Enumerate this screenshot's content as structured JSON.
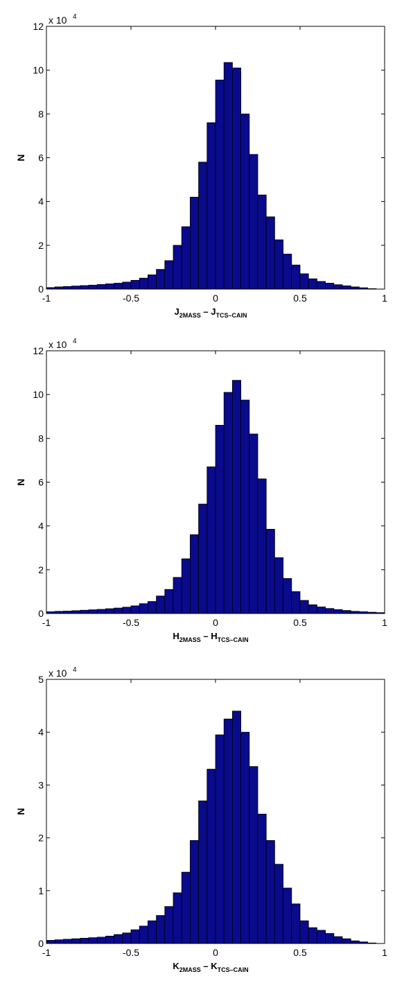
{
  "chart_data": [
    {
      "type": "bar",
      "xlabel": {
        "main1": "J",
        "sub1": "2MASS",
        "sep": " – ",
        "main2": "J",
        "sub2": "TCS–CAIN"
      },
      "ylabel": "N",
      "multiplier": {
        "base": "x 10",
        "exponent": "4"
      },
      "xlim": [
        -1,
        1
      ],
      "ylim": [
        0,
        120000
      ],
      "xticks": [
        "-1",
        "-0.5",
        "0",
        "0.5",
        "1"
      ],
      "yticks": [
        "0",
        "2",
        "4",
        "6",
        "8",
        "10",
        "12"
      ],
      "bin_width": 0.05,
      "bin_starts": [
        -1.0,
        -0.95,
        -0.9,
        -0.85,
        -0.8,
        -0.75,
        -0.7,
        -0.65,
        -0.6,
        -0.55,
        -0.5,
        -0.45,
        -0.4,
        -0.35,
        -0.3,
        -0.25,
        -0.2,
        -0.15,
        -0.1,
        -0.05,
        0.0,
        0.05,
        0.1,
        0.15,
        0.2,
        0.25,
        0.3,
        0.35,
        0.4,
        0.45,
        0.5,
        0.55,
        0.6,
        0.65,
        0.7,
        0.75,
        0.8,
        0.85,
        0.9,
        0.95
      ],
      "values": [
        700,
        1000,
        1200,
        1400,
        1600,
        1800,
        2100,
        2400,
        2700,
        3200,
        4000,
        5000,
        6500,
        9000,
        13000,
        20000,
        28500,
        42000,
        58000,
        76000,
        95500,
        103500,
        101000,
        80000,
        61500,
        43000,
        33000,
        22500,
        16000,
        11000,
        7000,
        4700,
        3500,
        2700,
        2000,
        1500,
        1000,
        600,
        200,
        0
      ],
      "bar_color": "#0A0A8C"
    },
    {
      "type": "bar",
      "xlabel": {
        "main1": "H",
        "sub1": "2MASS",
        "sep": " – ",
        "main2": "H",
        "sub2": "TCS–CAIN"
      },
      "ylabel": "N",
      "multiplier": {
        "base": "x 10",
        "exponent": "4"
      },
      "xlim": [
        -1,
        1
      ],
      "ylim": [
        0,
        120000
      ],
      "xticks": [
        "-1",
        "-0.5",
        "0",
        "0.5",
        "1"
      ],
      "yticks": [
        "0",
        "2",
        "4",
        "6",
        "8",
        "10",
        "12"
      ],
      "bin_width": 0.05,
      "bin_starts": [
        -1.0,
        -0.95,
        -0.9,
        -0.85,
        -0.8,
        -0.75,
        -0.7,
        -0.65,
        -0.6,
        -0.55,
        -0.5,
        -0.45,
        -0.4,
        -0.35,
        -0.3,
        -0.25,
        -0.2,
        -0.15,
        -0.1,
        -0.05,
        0.0,
        0.05,
        0.1,
        0.15,
        0.2,
        0.25,
        0.3,
        0.35,
        0.4,
        0.45,
        0.5,
        0.55,
        0.6,
        0.65,
        0.7,
        0.75,
        0.8,
        0.85,
        0.9,
        0.95
      ],
      "values": [
        800,
        1000,
        1100,
        1300,
        1500,
        1700,
        1900,
        2200,
        2500,
        2900,
        3500,
        4500,
        5500,
        8000,
        11000,
        16500,
        25000,
        36000,
        50000,
        67000,
        86000,
        101000,
        106500,
        97500,
        82000,
        61500,
        38500,
        25500,
        16000,
        10000,
        6000,
        4000,
        3000,
        2300,
        1800,
        1400,
        1000,
        800,
        600,
        400
      ],
      "bar_color": "#0A0A8C"
    },
    {
      "type": "bar",
      "xlabel": {
        "main1": "K",
        "sub1": "2MASS",
        "sep": " – ",
        "main2": "K",
        "sub2": "TCS–CAIN"
      },
      "ylabel": "N",
      "multiplier": {
        "base": "x 10",
        "exponent": "4"
      },
      "xlim": [
        -1,
        1
      ],
      "ylim": [
        0,
        50000
      ],
      "xticks": [
        "-1",
        "-0.5",
        "0",
        "0.5",
        "1"
      ],
      "yticks": [
        "0",
        "1",
        "2",
        "3",
        "4",
        "5"
      ],
      "bin_width": 0.05,
      "bin_starts": [
        -1.0,
        -0.95,
        -0.9,
        -0.85,
        -0.8,
        -0.75,
        -0.7,
        -0.65,
        -0.6,
        -0.55,
        -0.5,
        -0.45,
        -0.4,
        -0.35,
        -0.3,
        -0.25,
        -0.2,
        -0.15,
        -0.1,
        -0.05,
        0.0,
        0.05,
        0.1,
        0.15,
        0.2,
        0.25,
        0.3,
        0.35,
        0.4,
        0.45,
        0.5,
        0.55,
        0.6,
        0.65,
        0.7,
        0.75,
        0.8,
        0.85,
        0.9,
        0.95
      ],
      "values": [
        600,
        700,
        800,
        900,
        1000,
        1100,
        1200,
        1400,
        1700,
        2000,
        2600,
        3300,
        4300,
        5300,
        7000,
        9600,
        13500,
        19500,
        27000,
        33000,
        39500,
        42500,
        44000,
        40000,
        33500,
        24500,
        19500,
        15000,
        10500,
        7500,
        4300,
        3000,
        2500,
        1900,
        1300,
        900,
        500,
        300,
        100,
        0
      ],
      "bar_color": "#0A0A8C"
    }
  ]
}
